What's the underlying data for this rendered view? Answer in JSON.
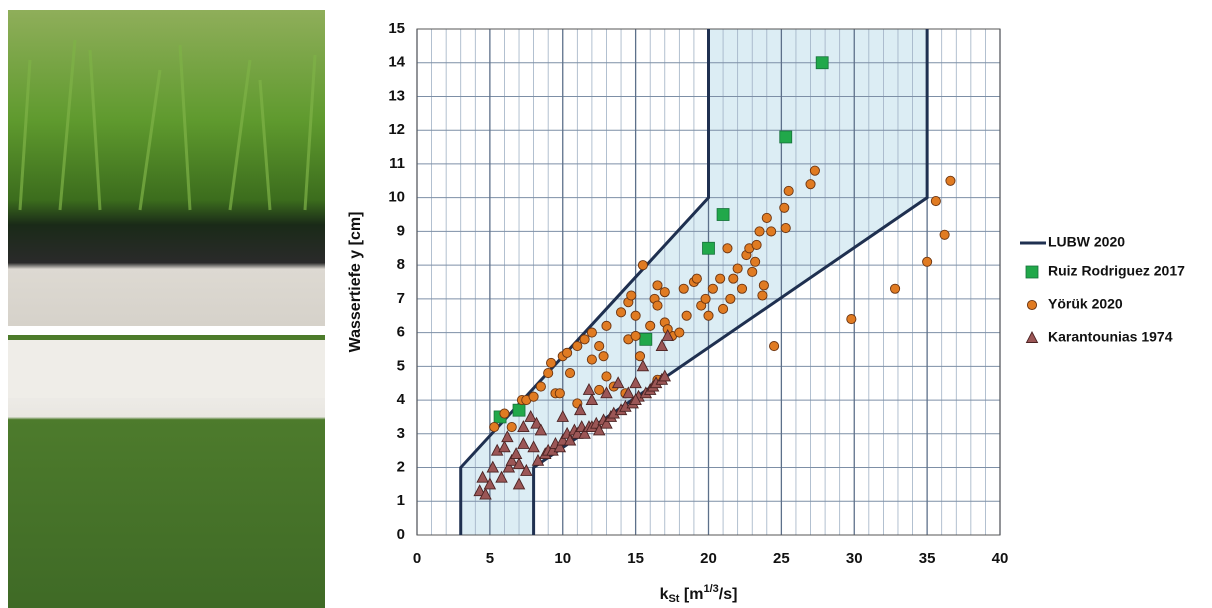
{
  "chart_data": {
    "type": "scatter",
    "x_label": {
      "symbol": "k",
      "subscript": "St",
      "unit_open": " [m",
      "superscript": "1/3",
      "unit_close": "/s]"
    },
    "y_label": "Wassertiefe y [cm]",
    "xlim": [
      0,
      40
    ],
    "ylim": [
      0,
      15
    ],
    "xticks": [
      0,
      5,
      10,
      15,
      20,
      25,
      30,
      35,
      40
    ],
    "yticks": [
      0,
      1,
      2,
      3,
      4,
      5,
      6,
      7,
      8,
      9,
      10,
      11,
      12,
      13,
      14,
      15
    ],
    "x_minor_ticks": [
      1,
      2,
      3,
      4,
      6,
      7,
      8,
      9,
      11,
      12,
      13,
      14,
      16,
      17,
      18,
      19,
      21,
      22,
      23,
      24,
      26,
      27,
      28,
      29,
      31,
      32,
      33,
      34,
      36,
      37,
      38,
      39
    ],
    "grid": true,
    "legend": "right",
    "series": [
      {
        "name": "LUBW 2020",
        "kind": "line",
        "color": "#1f3050",
        "fill": "#d6eaf2",
        "x": [
          3,
          3,
          20,
          20,
          null,
          8,
          8,
          35,
          35
        ],
        "values": [
          0,
          2,
          10,
          15,
          null,
          0,
          2,
          10,
          15
        ]
      },
      {
        "name": "Ruiz Rodriguez 2017",
        "kind": "square",
        "color": "#21a84a",
        "x": [
          5.7,
          7,
          15.7,
          20,
          21,
          25.3,
          27.8
        ],
        "values": [
          3.5,
          3.7,
          5.8,
          8.5,
          9.5,
          11.8,
          14.0
        ]
      },
      {
        "name": "Yörük 2020",
        "kind": "circle",
        "color": "#e07b22",
        "x": [
          5.3,
          6,
          6.5,
          7.2,
          7.5,
          8,
          8.5,
          9,
          9.2,
          9.5,
          10,
          10.3,
          10.5,
          11,
          11.5,
          12,
          12,
          12.5,
          12.8,
          13,
          13,
          13.5,
          14,
          14.5,
          14.5,
          14.7,
          15,
          15,
          15.3,
          15.5,
          16,
          16.3,
          16.5,
          16.5,
          17,
          17,
          17.5,
          18,
          18.3,
          18.5,
          19,
          19.2,
          19.5,
          19.8,
          20,
          20.3,
          20.8,
          21,
          21.3,
          21.5,
          21.7,
          22,
          22.3,
          22.6,
          22.8,
          23,
          23.2,
          23.3,
          23.5,
          23.7,
          23.8,
          24,
          24.3,
          24.5,
          25.2,
          25.3,
          25.5,
          27,
          27.3,
          29.8,
          32.8,
          35,
          35.6,
          36.2,
          36.6,
          16.8,
          16.5,
          17.2,
          14.3,
          12.5,
          11,
          9.8
        ],
        "values": [
          3.2,
          3.6,
          3.2,
          4,
          4,
          4.1,
          4.4,
          4.8,
          5.1,
          4.2,
          5.3,
          5.4,
          4.8,
          5.6,
          5.8,
          6,
          5.2,
          5.6,
          5.3,
          6.2,
          4.7,
          4.4,
          6.6,
          6.9,
          5.8,
          7.1,
          6.5,
          5.9,
          5.3,
          8,
          6.2,
          7,
          7.4,
          6.8,
          7.2,
          6.3,
          5.9,
          6,
          7.3,
          6.5,
          7.5,
          7.6,
          6.8,
          7,
          6.5,
          7.3,
          7.6,
          6.7,
          8.5,
          7,
          7.6,
          7.9,
          7.3,
          8.3,
          8.5,
          7.8,
          8.1,
          8.6,
          9,
          7.1,
          7.4,
          9.4,
          9,
          5.6,
          9.7,
          9.1,
          10.2,
          10.4,
          10.8,
          6.4,
          7.3,
          8.1,
          9.9,
          8.9,
          10.5,
          4.6,
          4.6,
          6.1,
          4.2,
          4.3,
          3.9,
          4.2
        ]
      },
      {
        "name": "Karantounias 1974",
        "kind": "triangle",
        "color": "#9b5656",
        "x": [
          4.3,
          4.7,
          4.5,
          5,
          5.2,
          5.5,
          5.8,
          6,
          6.2,
          6.3,
          6.5,
          6.8,
          7,
          7,
          7.3,
          7.3,
          7.5,
          7.8,
          8,
          8.2,
          8.5,
          8.3,
          8.8,
          9,
          9.3,
          9.5,
          9.8,
          10,
          10,
          10.3,
          10.5,
          10.8,
          11,
          11.2,
          11.3,
          11.5,
          11.8,
          12,
          12,
          12.3,
          12.5,
          12.8,
          13,
          13.3,
          13.5,
          13.8,
          14,
          14.3,
          14.5,
          14.8,
          15,
          15.2,
          15.5,
          15.7,
          16,
          16.2,
          16.4,
          16.8,
          17,
          16.8,
          17.2,
          15,
          13,
          11.8
        ],
        "values": [
          1.3,
          1.2,
          1.7,
          1.5,
          2,
          2.5,
          1.7,
          2.6,
          2.9,
          2,
          2.2,
          2.4,
          1.5,
          2.1,
          3.2,
          2.7,
          1.9,
          3.5,
          2.6,
          3.3,
          3.1,
          2.2,
          2.4,
          2.5,
          2.5,
          2.7,
          2.6,
          3.5,
          2.8,
          3,
          2.8,
          3.1,
          3,
          3.7,
          3.2,
          3,
          3.2,
          4,
          3.2,
          3.3,
          3.1,
          3.4,
          3.3,
          3.5,
          3.6,
          4.5,
          3.7,
          3.8,
          4.2,
          3.9,
          4.5,
          4.1,
          5,
          4.2,
          4.3,
          4.4,
          4.5,
          4.6,
          4.7,
          5.6,
          5.9,
          4,
          4.2,
          4.3
        ]
      }
    ]
  }
}
